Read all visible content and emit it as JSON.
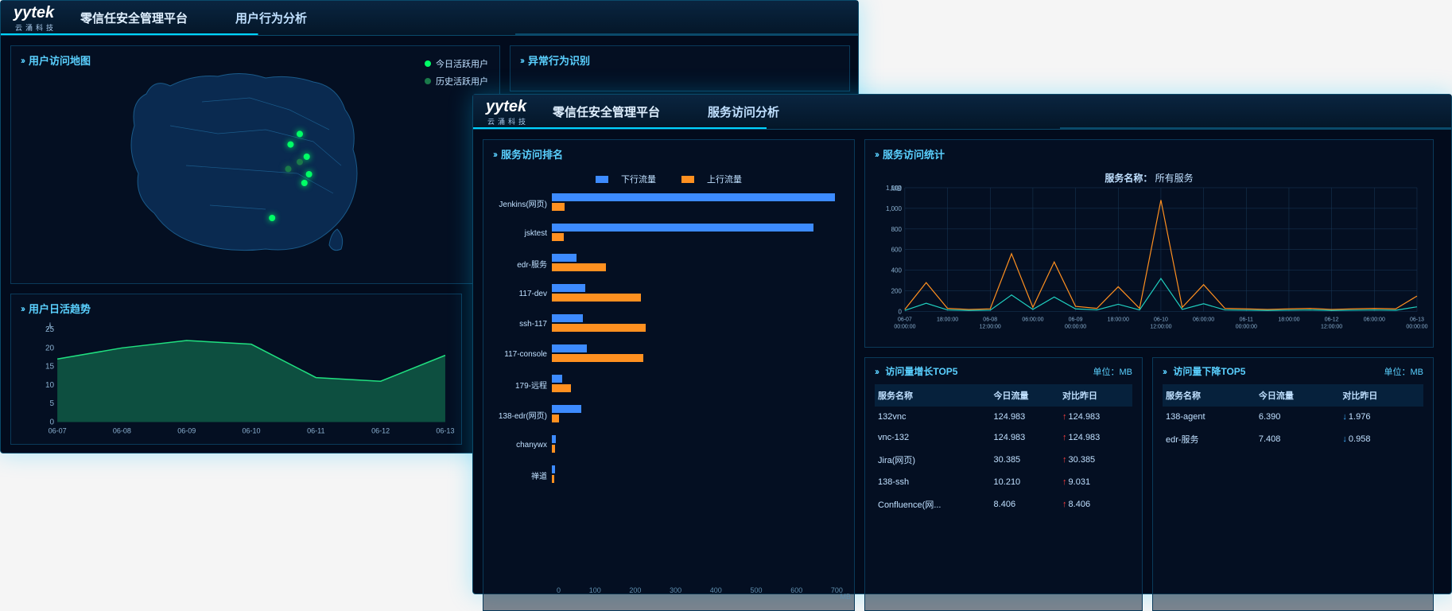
{
  "brand": {
    "name": "yytek",
    "sub": "云涌科技"
  },
  "platform_name": "零信任安全管理平台",
  "back": {
    "page_title": "用户行为分析",
    "map": {
      "title": "用户访问地图",
      "legend": [
        {
          "label": "今日活跃用户",
          "color": "#00ff66"
        },
        {
          "label": "历史活跃用户",
          "color": "#1a7a4a"
        }
      ],
      "points": [
        {
          "x": 0.7,
          "y": 0.32,
          "color": "#00ff66"
        },
        {
          "x": 0.66,
          "y": 0.38,
          "color": "#00ff66"
        },
        {
          "x": 0.73,
          "y": 0.45,
          "color": "#00ff66"
        },
        {
          "x": 0.74,
          "y": 0.55,
          "color": "#00ff66"
        },
        {
          "x": 0.72,
          "y": 0.6,
          "color": "#00ff66"
        },
        {
          "x": 0.58,
          "y": 0.8,
          "color": "#00ff66"
        },
        {
          "x": 0.7,
          "y": 0.48,
          "color": "#1a7a4a"
        },
        {
          "x": 0.65,
          "y": 0.52,
          "color": "#1a7a4a"
        }
      ]
    },
    "anomaly": {
      "title": "异常行为识别"
    },
    "trend": {
      "title": "用户日活趋势",
      "y_unit": "人",
      "ylim": [
        0,
        25
      ],
      "ytick_step": 5,
      "x_labels": [
        "06-07",
        "06-08",
        "06-09",
        "06-10",
        "06-11",
        "06-12",
        "06-13"
      ],
      "values": [
        17,
        20,
        22,
        21,
        12,
        11,
        18
      ],
      "line_color": "#20e080",
      "fill_color": "rgba(32,200,120,0.35)"
    }
  },
  "front": {
    "page_title": "服务访问分析",
    "rank": {
      "title": "服务访问排名",
      "legend": [
        {
          "label": "下行流量",
          "color": "#3d8bff"
        },
        {
          "label": "上行流量",
          "color": "#ff9020"
        }
      ],
      "x_unit": "MB",
      "xlim": [
        0,
        700
      ],
      "xtick_step": 100,
      "services": [
        {
          "name": "Jenkins(网页)",
          "down": 680,
          "up": 30
        },
        {
          "name": "jsktest",
          "down": 630,
          "up": 28
        },
        {
          "name": "edr-服务",
          "down": 60,
          "up": 130
        },
        {
          "name": "117-dev",
          "down": 80,
          "up": 215
        },
        {
          "name": "ssh-117",
          "down": 75,
          "up": 225
        },
        {
          "name": "117-console",
          "down": 85,
          "up": 220
        },
        {
          "name": "179-远程",
          "down": 25,
          "up": 45
        },
        {
          "name": "138-edr(网页)",
          "down": 70,
          "up": 18
        },
        {
          "name": "chanywx",
          "down": 10,
          "up": 8
        },
        {
          "name": "禅道",
          "down": 8,
          "up": 6
        }
      ]
    },
    "stats": {
      "title": "服务访问统计",
      "service_label": "服务名称：",
      "service_value": "所有服务",
      "y_unit": "MB",
      "ylim": [
        0,
        1200
      ],
      "ytick_step": 200,
      "x_labels": [
        "06-07 00:00:00",
        "18:00:00",
        "06-08 12:00:00",
        "06:00:00",
        "06-09 00:00:00",
        "18:00:00",
        "06-10 12:00:00",
        "06:00:00",
        "06-11 00:00:00",
        "18:00:00",
        "06-12 12:00:00",
        "06:00:00",
        "06-13 00:00:00"
      ],
      "series": [
        {
          "color": "#ff9020",
          "data": [
            20,
            280,
            30,
            20,
            25,
            560,
            40,
            480,
            50,
            30,
            240,
            30,
            1080,
            40,
            260,
            30,
            25,
            20,
            25,
            30,
            20,
            25,
            30,
            25,
            150
          ]
        },
        {
          "color": "#20d0c0",
          "data": [
            10,
            80,
            15,
            10,
            12,
            160,
            20,
            140,
            25,
            15,
            70,
            15,
            320,
            20,
            75,
            15,
            12,
            10,
            12,
            15,
            10,
            12,
            15,
            12,
            45
          ]
        }
      ]
    },
    "top5_up": {
      "title": "访问量增长TOP5",
      "unit_label": "单位：",
      "unit": "MB",
      "columns": [
        "服务名称",
        "今日流量",
        "对比昨日"
      ],
      "rows": [
        {
          "name": "132vnc",
          "today": "124.983",
          "delta": "124.983",
          "dir": "up"
        },
        {
          "name": "vnc-132",
          "today": "124.983",
          "delta": "124.983",
          "dir": "up"
        },
        {
          "name": "Jira(网页)",
          "today": "30.385",
          "delta": "30.385",
          "dir": "up"
        },
        {
          "name": "138-ssh",
          "today": "10.210",
          "delta": "9.031",
          "dir": "up"
        },
        {
          "name": "Confluence(网...",
          "today": "8.406",
          "delta": "8.406",
          "dir": "up"
        }
      ]
    },
    "top5_down": {
      "title": "访问量下降TOP5",
      "unit_label": "单位：",
      "unit": "MB",
      "columns": [
        "服务名称",
        "今日流量",
        "对比昨日"
      ],
      "rows": [
        {
          "name": "138-agent",
          "today": "6.390",
          "delta": "1.976",
          "dir": "down"
        },
        {
          "name": "edr-服务",
          "today": "7.408",
          "delta": "0.958",
          "dir": "down"
        }
      ]
    }
  },
  "colors": {
    "panel_border": "#0a3a5a",
    "accent": "#5ad0ff",
    "bg": "#020b1c"
  }
}
